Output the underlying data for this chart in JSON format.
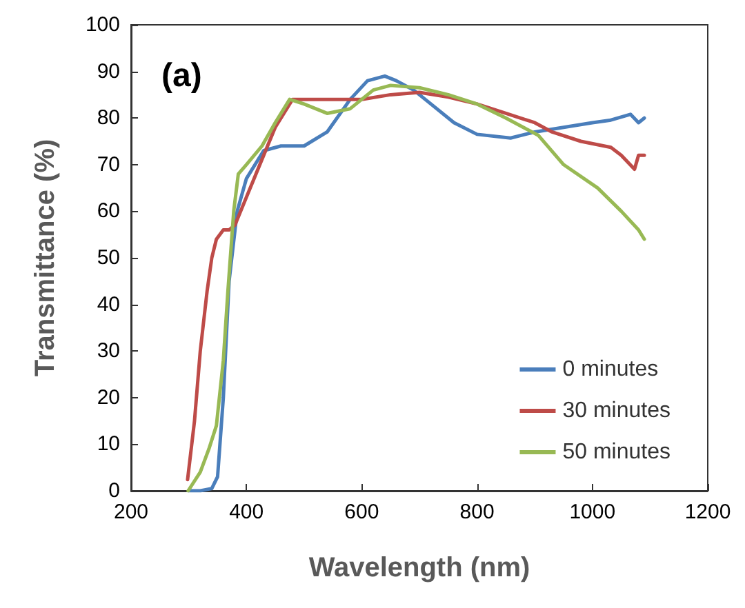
{
  "chart_data": {
    "type": "line",
    "xlabel": "Wavelength (nm)",
    "ylabel": "Transmittance (%)",
    "annotations": [
      "(a)"
    ],
    "xlim": [
      200,
      1200
    ],
    "xticks": [
      200,
      400,
      600,
      800,
      1000,
      1200
    ],
    "ylim": [
      0,
      100
    ],
    "yticks": [
      0,
      10,
      20,
      30,
      40,
      50,
      60,
      70,
      80,
      90,
      100
    ],
    "grid": false,
    "legend": "bottom right",
    "marker": "none",
    "line_style": "solid",
    "series": [
      {
        "name": "0 minutes",
        "color": "#4a7ebb",
        "x": [
          300,
          320,
          340,
          350,
          360,
          370,
          384,
          400,
          430,
          460,
          500,
          540,
          580,
          610,
          640,
          660,
          690,
          720,
          760,
          800,
          858,
          900,
          950,
          1000,
          1030,
          1066,
          1080,
          1090
        ],
        "values": [
          0,
          0,
          0.5,
          3,
          20,
          45,
          60,
          67,
          73,
          74,
          74,
          77,
          84,
          88,
          89,
          88,
          86,
          83,
          79,
          76.5,
          75.7,
          77,
          78,
          79,
          79.5,
          80.8,
          79,
          80
        ]
      },
      {
        "name": "30 minutes",
        "color": "#be4b48",
        "x": [
          298,
          310,
          320,
          332,
          340,
          348,
          360,
          370,
          380,
          400,
          420,
          450,
          480,
          520,
          600,
          650,
          700,
          750,
          800,
          850,
          900,
          930,
          980,
          1032,
          1050,
          1073,
          1080,
          1090
        ],
        "values": [
          2.4,
          15,
          30,
          43,
          50,
          54,
          56,
          56,
          57,
          63,
          69,
          78,
          84,
          84,
          84,
          85,
          85.5,
          84.5,
          83,
          81,
          79,
          77,
          75,
          73.7,
          72,
          69,
          72,
          72
        ]
      },
      {
        "name": "50 minutes",
        "color": "#98b954",
        "x": [
          299,
          320,
          335,
          348,
          360,
          368,
          378,
          386,
          400,
          427,
          450,
          475,
          500,
          540,
          580,
          620,
          650,
          700,
          750,
          800,
          850,
          906,
          950,
          1009,
          1050,
          1080,
          1090
        ],
        "values": [
          0,
          4,
          9,
          14,
          28,
          43,
          60,
          68,
          70,
          74,
          79,
          84,
          83,
          81,
          82,
          86,
          87,
          86.5,
          85,
          83,
          80,
          76.3,
          70,
          65,
          60,
          56,
          54
        ]
      }
    ]
  }
}
